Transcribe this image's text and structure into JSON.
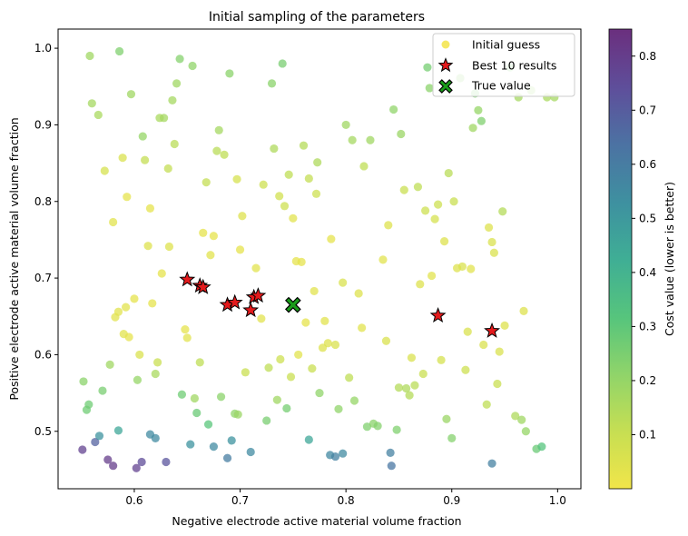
{
  "chart_data": {
    "type": "scatter",
    "title": "Initial sampling of the parameters",
    "xlabel": "Negative electrode active material volume fraction",
    "ylabel": "Positive electrode active material volume fraction",
    "xlim": [
      0.528,
      1.022
    ],
    "ylim": [
      0.425,
      1.025
    ],
    "xticks": [
      "0.6",
      "0.7",
      "0.8",
      "0.9",
      "1.0"
    ],
    "xtick_values": [
      0.6,
      0.7,
      0.8,
      0.9,
      1.0
    ],
    "yticks": [
      "0.5",
      "0.6",
      "0.7",
      "0.8",
      "0.9",
      "1.0"
    ],
    "ytick_values": [
      0.5,
      0.6,
      0.7,
      0.8,
      0.9,
      1.0
    ],
    "grid": false,
    "legend_position": "top-right",
    "colormap": "viridis_r",
    "colorbar": {
      "label": "Cost value (lower is better)",
      "ticks": [
        "0.1",
        "0.2",
        "0.3",
        "0.4",
        "0.5",
        "0.6",
        "0.7",
        "0.8"
      ],
      "tick_values": [
        0.1,
        0.2,
        0.3,
        0.4,
        0.5,
        0.6,
        0.7,
        0.8
      ],
      "range": [
        0.0,
        0.85
      ]
    },
    "legend": [
      {
        "label": "Initial guess",
        "marker": "circle",
        "color": "#f2e23c"
      },
      {
        "label": "Best 10 results",
        "marker": "star",
        "color": "#e31a1c"
      },
      {
        "label": "True value",
        "marker": "x",
        "color": "#1a9c1a"
      }
    ],
    "series": [
      {
        "name": "Initial guess",
        "points": [
          [
            0.552,
            0.565,
            0.22
          ],
          [
            0.555,
            0.528,
            0.27
          ],
          [
            0.557,
            0.535,
            0.27
          ],
          [
            0.558,
            0.99,
            0.18
          ],
          [
            0.56,
            0.928,
            0.17
          ],
          [
            0.566,
            0.913,
            0.16
          ],
          [
            0.57,
            0.553,
            0.25
          ],
          [
            0.572,
            0.84,
            0.07
          ],
          [
            0.577,
            0.587,
            0.18
          ],
          [
            0.58,
            0.773,
            0.04
          ],
          [
            0.582,
            0.649,
            0.04
          ],
          [
            0.585,
            0.656,
            0.04
          ],
          [
            0.586,
            0.996,
            0.24
          ],
          [
            0.589,
            0.857,
            0.06
          ],
          [
            0.59,
            0.627,
            0.04
          ],
          [
            0.592,
            0.662,
            0.04
          ],
          [
            0.593,
            0.806,
            0.03
          ],
          [
            0.595,
            0.623,
            0.03
          ],
          [
            0.597,
            0.94,
            0.18
          ],
          [
            0.6,
            0.673,
            0.03
          ],
          [
            0.603,
            0.567,
            0.2
          ],
          [
            0.605,
            0.6,
            0.06
          ],
          [
            0.608,
            0.885,
            0.2
          ],
          [
            0.61,
            0.854,
            0.11
          ],
          [
            0.613,
            0.742,
            0.05
          ],
          [
            0.615,
            0.791,
            0.03
          ],
          [
            0.617,
            0.667,
            0.03
          ],
          [
            0.62,
            0.575,
            0.16
          ],
          [
            0.622,
            0.59,
            0.1
          ],
          [
            0.624,
            0.909,
            0.16
          ],
          [
            0.626,
            0.706,
            0.03
          ],
          [
            0.628,
            0.909,
            0.17
          ],
          [
            0.632,
            0.843,
            0.11
          ],
          [
            0.633,
            0.741,
            0.05
          ],
          [
            0.636,
            0.932,
            0.17
          ],
          [
            0.638,
            0.875,
            0.13
          ],
          [
            0.64,
            0.954,
            0.18
          ],
          [
            0.643,
            0.986,
            0.23
          ],
          [
            0.645,
            0.548,
            0.27
          ],
          [
            0.648,
            0.633,
            0.03
          ],
          [
            0.65,
            0.622,
            0.04
          ],
          [
            0.655,
            0.977,
            0.21
          ],
          [
            0.657,
            0.543,
            0.18
          ],
          [
            0.659,
            0.524,
            0.28
          ],
          [
            0.662,
            0.59,
            0.12
          ],
          [
            0.665,
            0.759,
            0.03
          ],
          [
            0.668,
            0.825,
            0.11
          ],
          [
            0.67,
            0.509,
            0.31
          ],
          [
            0.672,
            0.73,
            0.04
          ],
          [
            0.675,
            0.755,
            0.03
          ],
          [
            0.678,
            0.866,
            0.13
          ],
          [
            0.68,
            0.893,
            0.17
          ],
          [
            0.682,
            0.545,
            0.22
          ],
          [
            0.685,
            0.861,
            0.12
          ],
          [
            0.69,
            0.967,
            0.22
          ],
          [
            0.695,
            0.523,
            0.21
          ],
          [
            0.697,
            0.829,
            0.07
          ],
          [
            0.698,
            0.522,
            0.19
          ],
          [
            0.7,
            0.737,
            0.03
          ],
          [
            0.702,
            0.781,
            0.05
          ],
          [
            0.705,
            0.577,
            0.1
          ],
          [
            0.715,
            0.713,
            0.04
          ],
          [
            0.72,
            0.647,
            0.04
          ],
          [
            0.722,
            0.822,
            0.09
          ],
          [
            0.725,
            0.514,
            0.25
          ],
          [
            0.727,
            0.583,
            0.12
          ],
          [
            0.73,
            0.954,
            0.22
          ],
          [
            0.732,
            0.869,
            0.15
          ],
          [
            0.735,
            0.541,
            0.18
          ],
          [
            0.737,
            0.807,
            0.08
          ],
          [
            0.738,
            0.594,
            0.09
          ],
          [
            0.74,
            0.98,
            0.25
          ],
          [
            0.742,
            0.794,
            0.09
          ],
          [
            0.744,
            0.53,
            0.26
          ],
          [
            0.746,
            0.835,
            0.12
          ],
          [
            0.748,
            0.571,
            0.1
          ],
          [
            0.75,
            0.778,
            0.04
          ],
          [
            0.753,
            0.722,
            0.03
          ],
          [
            0.755,
            0.6,
            0.04
          ],
          [
            0.758,
            0.721,
            0.03
          ],
          [
            0.76,
            0.873,
            0.14
          ],
          [
            0.762,
            0.642,
            0.03
          ],
          [
            0.765,
            0.83,
            0.11
          ],
          [
            0.768,
            0.582,
            0.1
          ],
          [
            0.77,
            0.683,
            0.04
          ],
          [
            0.772,
            0.81,
            0.09
          ],
          [
            0.773,
            0.851,
            0.15
          ],
          [
            0.775,
            0.55,
            0.21
          ],
          [
            0.778,
            0.609,
            0.05
          ],
          [
            0.78,
            0.644,
            0.04
          ],
          [
            0.783,
            0.615,
            0.05
          ],
          [
            0.786,
            0.751,
            0.03
          ],
          [
            0.79,
            0.613,
            0.06
          ],
          [
            0.793,
            0.529,
            0.21
          ],
          [
            0.797,
            0.694,
            0.06
          ],
          [
            0.8,
            0.9,
            0.18
          ],
          [
            0.803,
            0.57,
            0.12
          ],
          [
            0.806,
            0.88,
            0.17
          ],
          [
            0.808,
            0.54,
            0.2
          ],
          [
            0.812,
            0.68,
            0.05
          ],
          [
            0.815,
            0.635,
            0.04
          ],
          [
            0.817,
            0.846,
            0.12
          ],
          [
            0.82,
            0.506,
            0.24
          ],
          [
            0.823,
            0.88,
            0.18
          ],
          [
            0.826,
            0.51,
            0.22
          ],
          [
            0.83,
            0.507,
            0.23
          ],
          [
            0.835,
            0.724,
            0.04
          ],
          [
            0.838,
            0.618,
            0.06
          ],
          [
            0.84,
            0.769,
            0.05
          ],
          [
            0.845,
            0.92,
            0.21
          ],
          [
            0.848,
            0.502,
            0.24
          ],
          [
            0.85,
            0.557,
            0.14
          ],
          [
            0.852,
            0.888,
            0.19
          ],
          [
            0.855,
            0.815,
            0.1
          ],
          [
            0.857,
            0.556,
            0.15
          ],
          [
            0.86,
            0.547,
            0.14
          ],
          [
            0.862,
            0.596,
            0.06
          ],
          [
            0.865,
            0.56,
            0.13
          ],
          [
            0.868,
            0.819,
            0.12
          ],
          [
            0.87,
            0.692,
            0.05
          ],
          [
            0.873,
            0.575,
            0.1
          ],
          [
            0.875,
            0.788,
            0.09
          ],
          [
            0.877,
            0.975,
            0.26
          ],
          [
            0.879,
            0.948,
            0.22
          ],
          [
            0.881,
            0.703,
            0.04
          ],
          [
            0.884,
            0.777,
            0.07
          ],
          [
            0.887,
            0.796,
            0.09
          ],
          [
            0.89,
            0.593,
            0.07
          ],
          [
            0.893,
            0.748,
            0.05
          ],
          [
            0.895,
            0.516,
            0.19
          ],
          [
            0.897,
            0.837,
            0.13
          ],
          [
            0.9,
            0.491,
            0.23
          ],
          [
            0.902,
            0.8,
            0.1
          ],
          [
            0.905,
            0.713,
            0.05
          ],
          [
            0.908,
            0.961,
            0.22
          ],
          [
            0.91,
            0.715,
            0.06
          ],
          [
            0.913,
            0.58,
            0.09
          ],
          [
            0.915,
            0.63,
            0.06
          ],
          [
            0.918,
            0.712,
            0.04
          ],
          [
            0.92,
            0.896,
            0.18
          ],
          [
            0.922,
            0.941,
            0.25
          ],
          [
            0.925,
            0.919,
            0.2
          ],
          [
            0.928,
            0.905,
            0.24
          ],
          [
            0.93,
            0.613,
            0.06
          ],
          [
            0.933,
            0.535,
            0.12
          ],
          [
            0.935,
            0.766,
            0.05
          ],
          [
            0.938,
            0.747,
            0.06
          ],
          [
            0.94,
            0.733,
            0.06
          ],
          [
            0.943,
            0.562,
            0.1
          ],
          [
            0.945,
            0.604,
            0.06
          ],
          [
            0.948,
            0.787,
            0.14
          ],
          [
            0.95,
            0.638,
            0.05
          ],
          [
            0.955,
            0.975,
            0.25
          ],
          [
            0.96,
            0.52,
            0.15
          ],
          [
            0.963,
            0.936,
            0.17
          ],
          [
            0.966,
            0.515,
            0.18
          ],
          [
            0.968,
            0.657,
            0.05
          ],
          [
            0.97,
            0.5,
            0.2
          ],
          [
            0.975,
            0.945,
            0.19
          ],
          [
            0.98,
            0.477,
            0.28
          ],
          [
            0.985,
            0.48,
            0.32
          ],
          [
            0.99,
            0.936,
            0.16
          ],
          [
            0.997,
            0.936,
            0.17
          ]
        ],
        "dark_points": [
          [
            0.551,
            0.476,
            0.78
          ],
          [
            0.563,
            0.486,
            0.68
          ],
          [
            0.567,
            0.494,
            0.52
          ],
          [
            0.575,
            0.463,
            0.8
          ],
          [
            0.58,
            0.455,
            0.8
          ],
          [
            0.585,
            0.501,
            0.45
          ],
          [
            0.602,
            0.452,
            0.78
          ],
          [
            0.607,
            0.46,
            0.75
          ],
          [
            0.615,
            0.496,
            0.55
          ],
          [
            0.62,
            0.491,
            0.55
          ],
          [
            0.63,
            0.46,
            0.72
          ],
          [
            0.653,
            0.483,
            0.52
          ],
          [
            0.675,
            0.48,
            0.55
          ],
          [
            0.688,
            0.465,
            0.6
          ],
          [
            0.692,
            0.488,
            0.52
          ],
          [
            0.71,
            0.473,
            0.55
          ],
          [
            0.765,
            0.489,
            0.45
          ],
          [
            0.785,
            0.469,
            0.56
          ],
          [
            0.79,
            0.467,
            0.58
          ],
          [
            0.797,
            0.471,
            0.55
          ],
          [
            0.842,
            0.472,
            0.58
          ],
          [
            0.843,
            0.455,
            0.62
          ],
          [
            0.938,
            0.458,
            0.58
          ]
        ]
      },
      {
        "name": "Best 10 results",
        "points": [
          [
            0.65,
            0.698
          ],
          [
            0.662,
            0.69
          ],
          [
            0.665,
            0.688
          ],
          [
            0.688,
            0.665
          ],
          [
            0.695,
            0.668
          ],
          [
            0.71,
            0.658
          ],
          [
            0.713,
            0.675
          ],
          [
            0.717,
            0.677
          ],
          [
            0.887,
            0.651
          ],
          [
            0.938,
            0.631
          ]
        ]
      },
      {
        "name": "True value",
        "points": [
          [
            0.75,
            0.665
          ]
        ]
      }
    ]
  }
}
